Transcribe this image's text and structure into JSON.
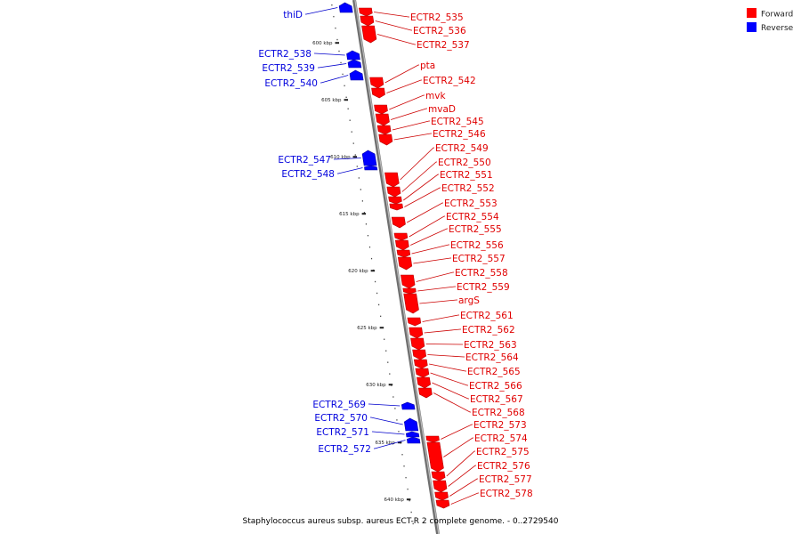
{
  "genome": {
    "caption": "Staphylococcus aureus subsp. aureus ECT-R 2 complete genome. - 0..2729540"
  },
  "legend": {
    "forward_label": "Forward",
    "reverse_label": "Reverse",
    "forward_color": "#ff0000",
    "reverse_color": "#0000ff"
  },
  "colors": {
    "backbone": "#888888",
    "leader_forward": "#cc0000",
    "leader_reverse": "#0000cc"
  },
  "kbp_ticks": [
    "600 kbp",
    "605 kbp",
    "610 kbp",
    "615 kbp",
    "620 kbp",
    "625 kbp",
    "630 kbp",
    "635 kbp",
    "640 kbp"
  ],
  "genes_forward": [
    {
      "name": "ECTR2_535"
    },
    {
      "name": "ECTR2_536"
    },
    {
      "name": "ECTR2_537"
    },
    {
      "name": "pta"
    },
    {
      "name": "ECTR2_542"
    },
    {
      "name": "mvk"
    },
    {
      "name": "mvaD"
    },
    {
      "name": "ECTR2_545"
    },
    {
      "name": "ECTR2_546"
    },
    {
      "name": "ECTR2_549"
    },
    {
      "name": "ECTR2_550"
    },
    {
      "name": "ECTR2_551"
    },
    {
      "name": "ECTR2_552"
    },
    {
      "name": "ECTR2_553"
    },
    {
      "name": "ECTR2_554"
    },
    {
      "name": "ECTR2_555"
    },
    {
      "name": "ECTR2_556"
    },
    {
      "name": "ECTR2_557"
    },
    {
      "name": "ECTR2_558"
    },
    {
      "name": "ECTR2_559"
    },
    {
      "name": "argS"
    },
    {
      "name": "ECTR2_561"
    },
    {
      "name": "ECTR2_562"
    },
    {
      "name": "ECTR2_563"
    },
    {
      "name": "ECTR2_564"
    },
    {
      "name": "ECTR2_565"
    },
    {
      "name": "ECTR2_566"
    },
    {
      "name": "ECTR2_567"
    },
    {
      "name": "ECTR2_568"
    },
    {
      "name": "ECTR2_573"
    },
    {
      "name": "ECTR2_574"
    },
    {
      "name": "ECTR2_575"
    },
    {
      "name": "ECTR2_576"
    },
    {
      "name": "ECTR2_577"
    },
    {
      "name": "ECTR2_578"
    }
  ],
  "genes_reverse": [
    {
      "name": "thiD"
    },
    {
      "name": "ECTR2_538"
    },
    {
      "name": "ECTR2_539"
    },
    {
      "name": "ECTR2_540"
    },
    {
      "name": "ECTR2_547"
    },
    {
      "name": "ECTR2_548"
    },
    {
      "name": "ECTR2_569"
    },
    {
      "name": "ECTR2_570"
    },
    {
      "name": "ECTR2_571"
    },
    {
      "name": "ECTR2_572"
    }
  ]
}
